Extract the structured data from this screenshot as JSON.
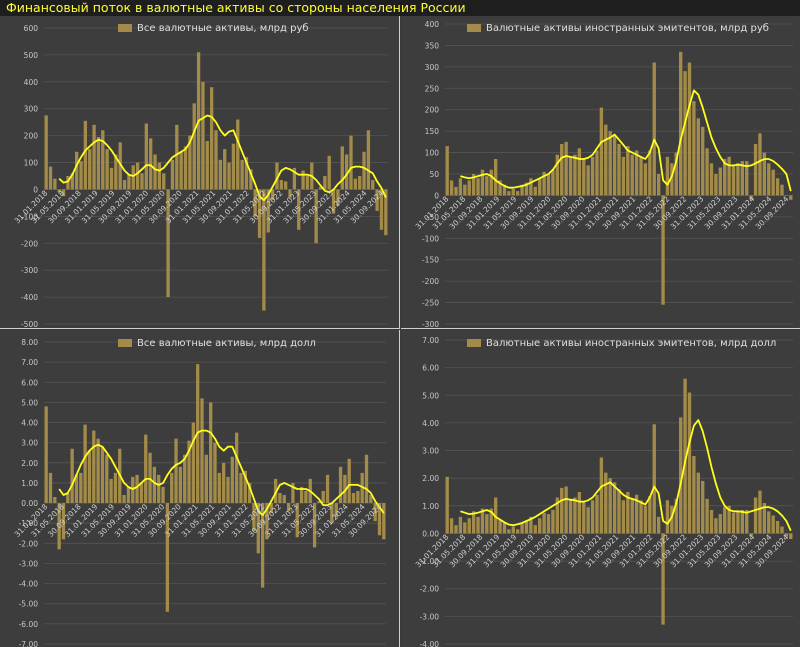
{
  "page_title": "Финансовый поток в валютные активы со стороны населения России",
  "colors": {
    "bar": "#a38c4a",
    "line": "#ffff1a",
    "grid": "#555555",
    "background": "#3d3d3d"
  },
  "chart_data": [
    {
      "type": "bar",
      "title": "Все валютные активы, млрд руб",
      "ylim": [
        -500,
        600
      ],
      "yticks": [
        -500,
        -400,
        -300,
        -200,
        -100,
        0,
        100,
        200,
        300,
        400,
        500,
        600
      ],
      "ytick_labels": [
        "-500",
        "-400",
        "-300",
        "-200",
        "-100",
        "0",
        "100",
        "200",
        "300",
        "400",
        "500",
        "600"
      ],
      "xtick_labels": [
        "31.01.2018",
        "31.05.2018",
        "30.09.2018",
        "31.01.2019",
        "31.05.2019",
        "30.09.2019",
        "31.01.2020",
        "31.05.2020",
        "30.09.2020",
        "31.01.2021",
        "31.05.2021",
        "30.09.2021",
        "31.01.2022",
        "31.05.2022",
        "30.09.2022",
        "31.01.2023",
        "31.05.2023",
        "30.09.2023",
        "31.01.2024",
        "31.05.2024",
        "30.09.2024"
      ],
      "legend": "top-center",
      "series": [
        {
          "kind": "bar",
          "values": [
            275,
            85,
            40,
            -10,
            -25,
            50,
            60,
            140,
            105,
            255,
            150,
            240,
            195,
            220,
            150,
            80,
            130,
            175,
            35,
            55,
            90,
            100,
            60,
            245,
            190,
            130,
            100,
            60,
            -400,
            110,
            240,
            140,
            160,
            200,
            320,
            510,
            400,
            180,
            380,
            220,
            110,
            150,
            100,
            170,
            260,
            110,
            120,
            75,
            -100,
            -180,
            -450,
            -160,
            -40,
            100,
            35,
            30,
            -30,
            80,
            -150,
            70,
            50,
            100,
            -200,
            10,
            50,
            125,
            -90,
            -60,
            160,
            130,
            200,
            40,
            50,
            140,
            220,
            35,
            -80,
            -150,
            -170
          ]
        },
        {
          "kind": "line",
          "start": 3,
          "values": [
            40,
            25,
            30,
            55,
            90,
            120,
            145,
            160,
            175,
            185,
            180,
            165,
            145,
            120,
            95,
            70,
            55,
            50,
            60,
            75,
            90,
            90,
            75,
            70,
            80,
            100,
            120,
            130,
            140,
            150,
            175,
            215,
            255,
            265,
            275,
            270,
            250,
            220,
            200,
            215,
            220,
            180,
            140,
            100,
            60,
            20,
            -25,
            -40,
            -20,
            10,
            40,
            70,
            80,
            75,
            65,
            55,
            55,
            55,
            50,
            35,
            15,
            -5,
            -10,
            0,
            20,
            35,
            55,
            80,
            85,
            85,
            80,
            70,
            60,
            30,
            5,
            -30
          ]
        }
      ]
    },
    {
      "type": "bar",
      "title": "Валютные активы иностранных эмитентов, млрд руб",
      "ylim": [
        -300,
        400
      ],
      "yticks": [
        -300,
        -250,
        -200,
        -150,
        -100,
        -50,
        0,
        50,
        100,
        150,
        200,
        250,
        300,
        350,
        400
      ],
      "ytick_labels": [
        "-300",
        "-250",
        "-200",
        "-150",
        "-100",
        "-50",
        "0",
        "50",
        "100",
        "150",
        "200",
        "250",
        "300",
        "350",
        "400"
      ],
      "xtick_labels": [
        "31.01.2018",
        "31.05.2018",
        "30.09.2018",
        "31.01.2019",
        "31.05.2019",
        "30.09.2019",
        "31.01.2020",
        "31.05.2020",
        "30.09.2020",
        "31.01.2021",
        "31.05.2021",
        "30.09.2021",
        "31.01.2022",
        "31.05.2022",
        "30.09.2022",
        "31.01.2023",
        "31.05.2023",
        "30.09.2023",
        "31.01.2024",
        "31.05.2024",
        "30.09.2024"
      ],
      "legend": "top-center",
      "series": [
        {
          "kind": "bar",
          "values": [
            115,
            35,
            20,
            40,
            25,
            35,
            50,
            40,
            60,
            45,
            60,
            85,
            35,
            25,
            10,
            15,
            10,
            25,
            30,
            40,
            20,
            40,
            55,
            50,
            60,
            95,
            120,
            125,
            90,
            95,
            110,
            85,
            70,
            90,
            105,
            205,
            165,
            150,
            140,
            120,
            90,
            115,
            95,
            105,
            90,
            75,
            105,
            310,
            50,
            -255,
            90,
            75,
            100,
            335,
            290,
            310,
            220,
            180,
            160,
            110,
            75,
            50,
            65,
            85,
            90,
            70,
            75,
            80,
            80,
            -10,
            120,
            145,
            100,
            75,
            60,
            40,
            25,
            0,
            -10
          ]
        },
        {
          "kind": "line",
          "start": 3,
          "values": [
            45,
            42,
            40,
            42,
            45,
            48,
            50,
            45,
            35,
            28,
            22,
            18,
            18,
            20,
            22,
            25,
            30,
            35,
            40,
            45,
            50,
            60,
            75,
            88,
            92,
            90,
            88,
            85,
            85,
            88,
            95,
            110,
            125,
            130,
            135,
            142,
            130,
            118,
            105,
            100,
            95,
            90,
            85,
            100,
            130,
            110,
            35,
            25,
            45,
            80,
            130,
            170,
            210,
            245,
            235,
            205,
            170,
            135,
            110,
            90,
            75,
            70,
            70,
            72,
            70,
            68,
            70,
            75,
            80,
            85,
            85,
            80,
            72,
            62,
            50,
            10
          ]
        }
      ]
    },
    {
      "type": "bar",
      "title": "Все валютные активы, млрд долл",
      "ylim": [
        -7,
        8
      ],
      "yticks": [
        -7,
        -6,
        -5,
        -4,
        -3,
        -2,
        -1,
        0,
        1,
        2,
        3,
        4,
        5,
        6,
        7,
        8
      ],
      "ytick_labels": [
        "-7.00",
        "-6.00",
        "-5.00",
        "-4.00",
        "-3.00",
        "-2.00",
        "-1.00",
        "0.00",
        "1.00",
        "2.00",
        "3.00",
        "4.00",
        "5.00",
        "6.00",
        "7.00",
        "8.00"
      ],
      "xtick_labels": [
        "31.01.2018",
        "31.05.2018",
        "30.09.2018",
        "31.01.2019",
        "31.05.2019",
        "30.09.2019",
        "31.01.2020",
        "31.05.2020",
        "30.09.2020",
        "31.01.2021",
        "31.05.2021",
        "30.09.2021",
        "31.01.2022",
        "31.05.2022",
        "30.09.2022",
        "31.01.2023",
        "31.05.2023",
        "30.09.2023",
        "31.01.2024",
        "31.05.2024",
        "30.09.2024"
      ],
      "legend": "top-center",
      "series": [
        {
          "kind": "bar",
          "values": [
            4.8,
            1.5,
            0.3,
            -2.3,
            -1.8,
            0.5,
            2.7,
            1.4,
            1.5,
            3.9,
            2.6,
            3.6,
            3.2,
            2.8,
            2.4,
            1.2,
            1.5,
            2.7,
            0.4,
            0.8,
            1.3,
            1.4,
            1.0,
            3.4,
            2.5,
            1.8,
            1.4,
            0.8,
            -5.4,
            1.5,
            3.2,
            1.8,
            2.4,
            3.1,
            4.0,
            6.9,
            5.2,
            2.4,
            5.0,
            3.0,
            1.5,
            2.0,
            1.3,
            2.3,
            3.5,
            1.5,
            1.6,
            1.0,
            -1.4,
            -2.5,
            -4.2,
            -1.8,
            -0.5,
            1.2,
            0.5,
            0.4,
            -0.4,
            1.0,
            -1.7,
            0.8,
            0.6,
            1.2,
            -2.2,
            0.1,
            0.6,
            1.4,
            -1.0,
            -0.7,
            1.8,
            1.4,
            2.2,
            0.5,
            0.6,
            1.5,
            2.4,
            0.4,
            -0.9,
            -1.6,
            -1.8
          ]
        },
        {
          "kind": "line",
          "start": 3,
          "values": [
            0.7,
            0.4,
            0.5,
            0.9,
            1.4,
            1.9,
            2.3,
            2.6,
            2.8,
            2.9,
            2.8,
            2.5,
            2.2,
            1.8,
            1.4,
            1.0,
            0.8,
            0.7,
            0.8,
            1.0,
            1.2,
            1.2,
            1.0,
            0.9,
            1.0,
            1.4,
            1.7,
            1.9,
            2.0,
            2.2,
            2.6,
            3.1,
            3.5,
            3.6,
            3.6,
            3.5,
            3.2,
            2.8,
            2.6,
            2.8,
            2.8,
            2.3,
            1.8,
            1.3,
            0.8,
            0.2,
            -0.4,
            -0.6,
            -0.3,
            0.1,
            0.5,
            0.9,
            1.0,
            0.9,
            0.8,
            0.7,
            0.7,
            0.7,
            0.6,
            0.4,
            0.2,
            -0.1,
            -0.1,
            0.0,
            0.2,
            0.4,
            0.6,
            0.9,
            0.9,
            0.9,
            0.8,
            0.7,
            0.5,
            0.1,
            -0.2,
            -0.5
          ]
        }
      ]
    },
    {
      "type": "bar",
      "title": "Валютные активы иностранных эмитентов, млрд долл",
      "ylim": [
        -4,
        7
      ],
      "yticks": [
        -4,
        -3,
        -2,
        -1,
        0,
        1,
        2,
        3,
        4,
        5,
        6,
        7
      ],
      "ytick_labels": [
        "-4.00",
        "-3.00",
        "-2.00",
        "-1.00",
        "0.00",
        "1.00",
        "2.00",
        "3.00",
        "4.00",
        "5.00",
        "6.00",
        "7.00"
      ],
      "xtick_labels": [
        "31.01.2018",
        "31.05.2018",
        "30.09.2018",
        "31.01.2019",
        "31.05.2019",
        "30.09.2019",
        "31.01.2020",
        "31.05.2020",
        "30.09.2020",
        "31.01.2021",
        "31.05.2021",
        "30.09.2021",
        "31.01.2022",
        "31.05.2022",
        "30.09.2022",
        "31.01.2023",
        "31.05.2023",
        "30.09.2023",
        "31.01.2024",
        "31.05.2024",
        "30.09.2024"
      ],
      "legend": "top-center",
      "series": [
        {
          "kind": "bar",
          "values": [
            2.05,
            0.55,
            0.3,
            0.6,
            0.4,
            0.55,
            0.8,
            0.6,
            0.9,
            0.7,
            0.9,
            1.3,
            0.5,
            0.4,
            0.15,
            0.25,
            0.15,
            0.35,
            0.45,
            0.6,
            0.3,
            0.55,
            0.75,
            0.7,
            0.85,
            1.3,
            1.65,
            1.7,
            1.25,
            1.3,
            1.5,
            1.15,
            0.95,
            1.2,
            1.4,
            2.75,
            2.2,
            2.0,
            1.85,
            1.6,
            1.2,
            1.5,
            1.25,
            1.4,
            1.2,
            1.0,
            1.35,
            3.95,
            0.6,
            -3.3,
            1.2,
            1.0,
            1.25,
            4.2,
            5.6,
            5.1,
            2.8,
            2.2,
            1.9,
            1.25,
            0.85,
            0.55,
            0.7,
            0.95,
            1.0,
            0.75,
            0.8,
            0.85,
            0.85,
            -0.1,
            1.3,
            1.55,
            1.1,
            0.8,
            0.65,
            0.45,
            0.25,
            -0.1,
            -0.2
          ]
        },
        {
          "kind": "line",
          "start": 3,
          "values": [
            0.8,
            0.75,
            0.7,
            0.72,
            0.75,
            0.8,
            0.85,
            0.78,
            0.6,
            0.5,
            0.4,
            0.32,
            0.3,
            0.33,
            0.38,
            0.45,
            0.52,
            0.6,
            0.7,
            0.8,
            0.9,
            1.0,
            1.1,
            1.2,
            1.25,
            1.22,
            1.2,
            1.15,
            1.15,
            1.2,
            1.3,
            1.5,
            1.7,
            1.78,
            1.85,
            1.7,
            1.55,
            1.4,
            1.3,
            1.25,
            1.2,
            1.12,
            1.05,
            1.3,
            1.7,
            1.45,
            0.45,
            0.35,
            0.6,
            1.1,
            1.8,
            2.6,
            3.3,
            3.9,
            4.1,
            3.7,
            3.1,
            2.4,
            1.8,
            1.3,
            1.0,
            0.85,
            0.8,
            0.8,
            0.78,
            0.75,
            0.8,
            0.85,
            0.9,
            0.95,
            0.95,
            0.9,
            0.8,
            0.65,
            0.45,
            0.1
          ]
        }
      ]
    }
  ]
}
